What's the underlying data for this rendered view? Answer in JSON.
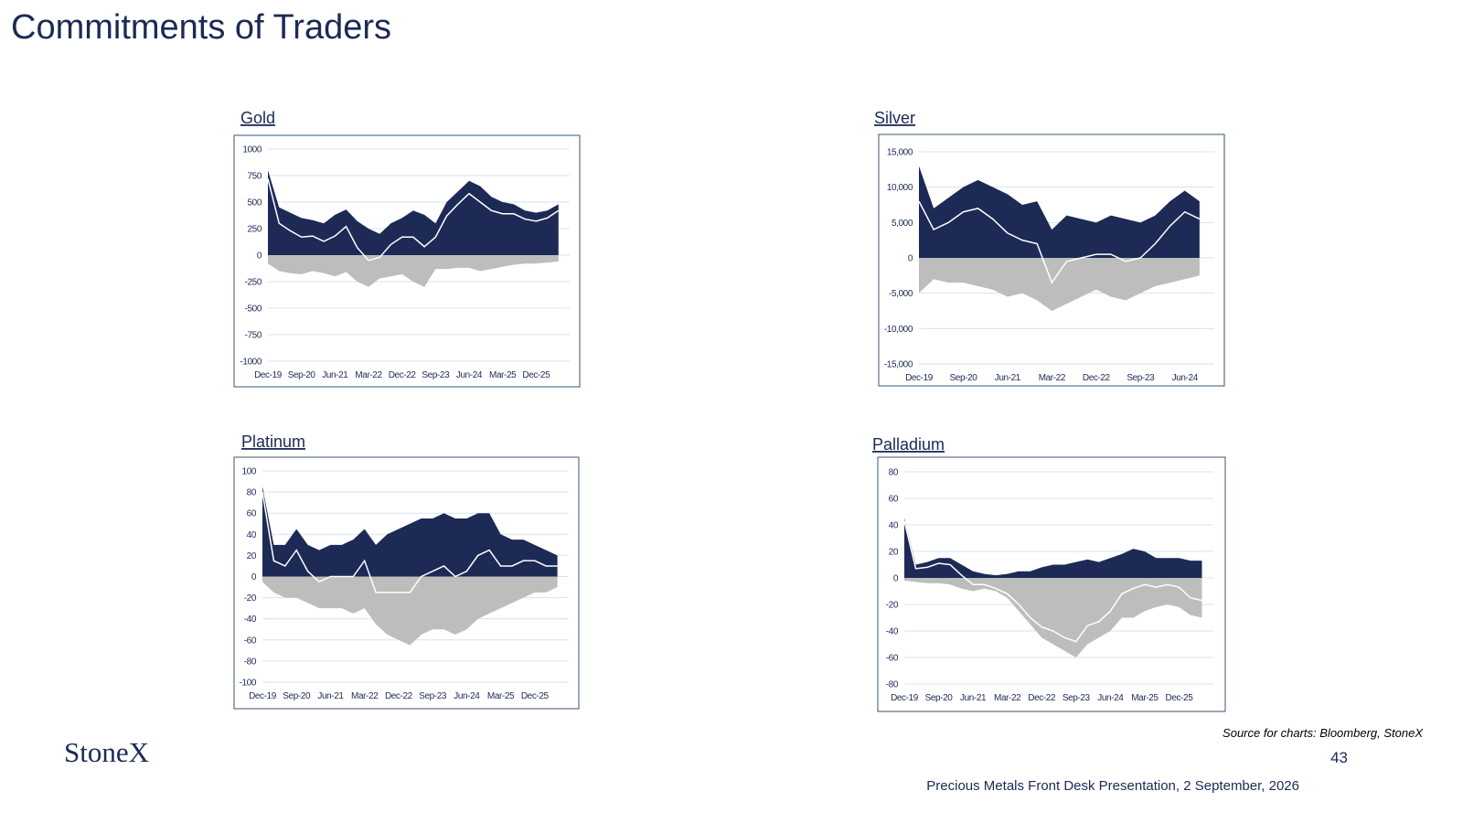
{
  "title": "Commitments of Traders",
  "logo": "StoneX",
  "source": "Source for charts: Bloomberg, StoneX",
  "page_number": "43",
  "footer": "Precious Metals Front Desk Presentation, 2 September, 2026",
  "chart_data": [
    {
      "type": "area",
      "title": "Gold",
      "categories": [
        "Dec-19",
        null,
        null,
        "Sep-20",
        null,
        null,
        "Jun-21",
        null,
        null,
        "Mar-22",
        null,
        null,
        "Dec-22",
        null,
        null,
        "Sep-23",
        null,
        null,
        "Jun-24",
        null,
        null,
        "Mar-25",
        null,
        null,
        "Dec-25",
        null,
        null
      ],
      "ylim": [
        -1000,
        1000
      ],
      "yticks": [
        1000,
        750,
        500,
        250,
        0,
        -250,
        -500,
        -750,
        -1000
      ],
      "grid": true,
      "series": [
        {
          "color": "#1c2a55",
          "values": [
            800,
            450,
            400,
            350,
            330,
            300,
            380,
            430,
            320,
            250,
            200,
            300,
            350,
            420,
            380,
            300,
            500,
            600,
            700,
            650,
            550,
            500,
            480,
            420,
            400,
            420,
            480
          ]
        },
        {
          "color": "#bdbdbd",
          "values": [
            -80,
            -150,
            -170,
            -180,
            -150,
            -170,
            -200,
            -160,
            -250,
            -300,
            -220,
            -200,
            -180,
            -250,
            -300,
            -130,
            -130,
            -120,
            -120,
            -150,
            -130,
            -110,
            -90,
            -80,
            -80,
            -70,
            -60
          ]
        },
        {
          "color": "#ffffff",
          "values": [
            720,
            300,
            230,
            170,
            180,
            130,
            180,
            270,
            70,
            -50,
            -20,
            100,
            170,
            170,
            80,
            170,
            370,
            480,
            580,
            500,
            420,
            390,
            390,
            340,
            320,
            350,
            420
          ]
        }
      ]
    },
    {
      "type": "area",
      "title": "Silver",
      "categories": [
        "Dec-19",
        null,
        null,
        "Sep-20",
        null,
        null,
        "Jun-21",
        null,
        null,
        "Mar-22",
        null,
        null,
        "Dec-22",
        null,
        null,
        "Sep-23",
        null,
        null,
        "Jun-24",
        null
      ],
      "ylim": [
        -15000,
        15000
      ],
      "yticks": [
        {
          "value": 15000,
          "label": "15,000"
        },
        {
          "value": 10000,
          "label": "10,000"
        },
        {
          "value": 5000,
          "label": "5,000"
        },
        0,
        {
          "value": -5000,
          "label": "-5,000"
        },
        {
          "value": -10000,
          "label": "-10,000"
        },
        {
          "value": -15000,
          "label": "-15,000"
        }
      ],
      "grid": true,
      "series": [
        {
          "color": "#1c2a55",
          "values": [
            13000,
            7000,
            8500,
            10000,
            11000,
            10000,
            9000,
            7500,
            8000,
            4000,
            6000,
            5500,
            5000,
            6000,
            5500,
            5000,
            6000,
            8000,
            9500,
            8000
          ]
        },
        {
          "color": "#bdbdbd",
          "values": [
            -5000,
            -3000,
            -3500,
            -3500,
            -4000,
            -4500,
            -5500,
            -5000,
            -6000,
            -7500,
            -6500,
            -5500,
            -4500,
            -5500,
            -6000,
            -5000,
            -4000,
            -3500,
            -3000,
            -2500
          ]
        },
        {
          "color": "#ffffff",
          "values": [
            8000,
            4000,
            5000,
            6500,
            7000,
            5500,
            3500,
            2500,
            2000,
            -3500,
            -500,
            0,
            500,
            500,
            -500,
            0,
            2000,
            4500,
            6500,
            5500
          ]
        }
      ]
    },
    {
      "type": "area",
      "title": "Platinum",
      "categories": [
        "Dec-19",
        null,
        null,
        "Sep-20",
        null,
        null,
        "Jun-21",
        null,
        null,
        "Mar-22",
        null,
        null,
        "Dec-22",
        null,
        null,
        "Sep-23",
        null,
        null,
        "Jun-24",
        null,
        null,
        "Mar-25",
        null,
        null,
        "Dec-25",
        null,
        null
      ],
      "ylim": [
        -100,
        100
      ],
      "yticks": [
        100,
        80,
        60,
        40,
        20,
        0,
        -20,
        -40,
        -60,
        -80,
        -100
      ],
      "grid": true,
      "series": [
        {
          "color": "#1c2a55",
          "values": [
            85,
            30,
            30,
            45,
            30,
            25,
            30,
            30,
            35,
            45,
            30,
            40,
            45,
            50,
            55,
            55,
            60,
            55,
            55,
            60,
            60,
            40,
            35,
            35,
            30,
            25,
            20
          ]
        },
        {
          "color": "#bdbdbd",
          "values": [
            -5,
            -15,
            -20,
            -20,
            -25,
            -30,
            -30,
            -30,
            -35,
            -30,
            -45,
            -55,
            -60,
            -65,
            -55,
            -50,
            -50,
            -55,
            -50,
            -40,
            -35,
            -30,
            -25,
            -20,
            -15,
            -15,
            -10
          ]
        },
        {
          "color": "#ffffff",
          "values": [
            80,
            15,
            10,
            25,
            5,
            -5,
            0,
            0,
            0,
            15,
            -15,
            -15,
            -15,
            -15,
            0,
            5,
            10,
            0,
            5,
            20,
            25,
            10,
            10,
            15,
            15,
            10,
            10
          ]
        }
      ]
    },
    {
      "type": "area",
      "title": "Palladium",
      "categories": [
        "Dec-19",
        null,
        null,
        "Sep-20",
        null,
        null,
        "Jun-21",
        null,
        null,
        "Mar-22",
        null,
        null,
        "Dec-22",
        null,
        null,
        "Sep-23",
        null,
        null,
        "Jun-24",
        null,
        null,
        "Mar-25",
        null,
        null,
        "Dec-25",
        null,
        null
      ],
      "ylim": [
        -80,
        80
      ],
      "yticks": [
        80,
        60,
        40,
        20,
        0,
        -20,
        -40,
        -60,
        -80
      ],
      "grid": true,
      "series": [
        {
          "color": "#1c2a55",
          "values": [
            45,
            10,
            12,
            15,
            15,
            10,
            5,
            3,
            2,
            3,
            5,
            5,
            8,
            10,
            10,
            12,
            14,
            12,
            15,
            18,
            22,
            20,
            15,
            15,
            15,
            13,
            13
          ]
        },
        {
          "color": "#bdbdbd",
          "values": [
            -2,
            -3,
            -4,
            -4,
            -5,
            -8,
            -10,
            -8,
            -10,
            -15,
            -25,
            -35,
            -45,
            -50,
            -55,
            -60,
            -50,
            -45,
            -40,
            -30,
            -30,
            -25,
            -22,
            -20,
            -22,
            -28,
            -30
          ]
        },
        {
          "color": "#ffffff",
          "values": [
            43,
            7,
            8,
            11,
            10,
            2,
            -5,
            -5,
            -8,
            -12,
            -20,
            -30,
            -37,
            -40,
            -45,
            -48,
            -36,
            -33,
            -25,
            -12,
            -8,
            -5,
            -7,
            -5,
            -7,
            -15,
            -17
          ]
        }
      ]
    }
  ]
}
